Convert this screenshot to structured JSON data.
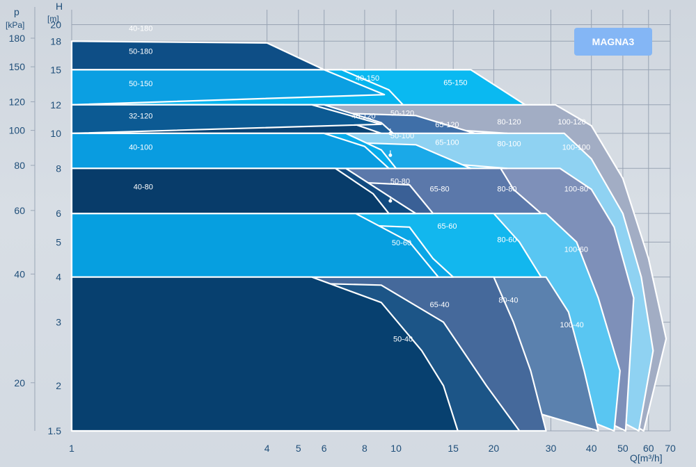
{
  "chart_data": {
    "type": "area",
    "badge": "MAGNA3",
    "xlabel": "Q[m³/h]",
    "ylabel_h": "H",
    "ylabel_h_unit": "[m]",
    "ylabel_p": "p",
    "ylabel_p_unit": "[kPa]",
    "x_scale": "log",
    "y_scale": "log",
    "xlim": [
      1,
      70
    ],
    "ylim": [
      1.5,
      22
    ],
    "x_ticks": [
      1,
      4,
      5,
      6,
      8,
      10,
      15,
      20,
      30,
      40,
      50,
      60,
      70
    ],
    "x_tick_labels": [
      "1",
      "4",
      "5",
      "6",
      "8",
      "10",
      "15",
      "20",
      "30",
      "40",
      "50",
      "60",
      "70"
    ],
    "h_ticks": [
      1.5,
      2,
      3,
      4,
      5,
      6,
      8,
      10,
      12,
      15,
      18,
      20
    ],
    "h_tick_labels": [
      "1.5",
      "2",
      "3",
      "4",
      "5",
      "6",
      "8",
      "10",
      "12",
      "15",
      "18",
      "20"
    ],
    "p_ticks": [
      20,
      40,
      60,
      80,
      100,
      120,
      150,
      180
    ],
    "p_tick_labels": [
      "20",
      "40",
      "60",
      "80",
      "100",
      "120",
      "150",
      "180"
    ],
    "grid": true,
    "series": [
      {
        "name": "100-120",
        "color": "#a2adc4",
        "points": [
          [
            1,
            12
          ],
          [
            31,
            12
          ],
          [
            40,
            10.5
          ],
          [
            50,
            7.5
          ],
          [
            60,
            4.5
          ],
          [
            68,
            2.7
          ],
          [
            58,
            1.5
          ]
        ]
      },
      {
        "name": "100-100",
        "color": "#8fd2f2",
        "points": [
          [
            1,
            10
          ],
          [
            33,
            10
          ],
          [
            40,
            8.5
          ],
          [
            50,
            6
          ],
          [
            57,
            4
          ],
          [
            62,
            2.5
          ],
          [
            56,
            1.5
          ]
        ]
      },
      {
        "name": "100-80",
        "color": "#7e90b9",
        "points": [
          [
            1,
            8
          ],
          [
            32,
            8
          ],
          [
            40,
            7
          ],
          [
            47,
            5.5
          ],
          [
            54,
            3.5
          ],
          [
            51,
            1.5
          ]
        ]
      },
      {
        "name": "100-60",
        "color": "#59c6f2",
        "points": [
          [
            1,
            6
          ],
          [
            29,
            6
          ],
          [
            36,
            5
          ],
          [
            42,
            3.5
          ],
          [
            49,
            2.2
          ],
          [
            47,
            1.5
          ]
        ]
      },
      {
        "name": "100-40",
        "color": "#5b81ae",
        "points": [
          [
            1,
            4
          ],
          [
            29,
            4
          ],
          [
            34,
            3.2
          ],
          [
            38,
            2.2
          ],
          [
            42,
            1.5
          ]
        ]
      },
      {
        "name": "80-120",
        "color": "#7d95c0",
        "points": [
          [
            1,
            12
          ],
          [
            22,
            10
          ],
          [
            1,
            10
          ]
        ]
      },
      {
        "name": "80-100",
        "color": "#5ec7f3",
        "points": [
          [
            1,
            10
          ],
          [
            22,
            8
          ],
          [
            1,
            8
          ]
        ]
      },
      {
        "name": "80-80",
        "color": "#5b78aa",
        "points": [
          [
            1,
            8
          ],
          [
            21,
            8
          ],
          [
            23,
            7
          ],
          [
            28,
            6
          ],
          [
            1,
            6
          ]
        ]
      },
      {
        "name": "80-60",
        "color": "#12b7ee",
        "points": [
          [
            1,
            6
          ],
          [
            20,
            6
          ],
          [
            24,
            5
          ],
          [
            28,
            4
          ],
          [
            1,
            4
          ]
        ]
      },
      {
        "name": "80-40",
        "color": "#45699b",
        "points": [
          [
            1,
            4
          ],
          [
            20,
            4
          ],
          [
            23,
            3
          ],
          [
            26,
            2.2
          ],
          [
            29,
            1.5
          ],
          [
            1,
            1.5
          ]
        ]
      },
      {
        "name": "65-150",
        "color": "#0ab9f1",
        "points": [
          [
            1,
            15
          ],
          [
            17,
            15
          ],
          [
            25,
            12
          ],
          [
            1,
            12
          ]
        ]
      },
      {
        "name": "65-120",
        "color": "#3f6fa8",
        "points": [
          [
            1,
            12
          ],
          [
            11.5,
            11.2
          ],
          [
            17.5,
            10
          ],
          [
            1,
            10
          ]
        ]
      },
      {
        "name": "65-100",
        "color": "#1aa9e8",
        "points": [
          [
            1,
            10
          ],
          [
            11.5,
            9.3
          ],
          [
            17,
            8
          ],
          [
            1,
            8
          ]
        ]
      },
      {
        "name": "65-80",
        "color": "#3a6096",
        "points": [
          [
            1,
            8
          ],
          [
            11,
            7.2
          ],
          [
            13,
            6
          ],
          [
            1,
            6
          ]
        ]
      },
      {
        "name": "65-60",
        "color": "#0aa6e6",
        "points": [
          [
            1,
            6
          ],
          [
            11,
            5.5
          ],
          [
            13,
            4.5
          ],
          [
            15,
            4
          ],
          [
            1,
            4
          ]
        ]
      },
      {
        "name": "65-40",
        "color": "#1c5587",
        "points": [
          [
            1,
            4
          ],
          [
            9,
            3.8
          ],
          [
            14,
            3
          ],
          [
            19,
            2
          ],
          [
            24,
            1.5
          ],
          [
            1,
            1.5
          ]
        ]
      },
      {
        "name": "50-180",
        "color": "#0e4e86",
        "points": [
          [
            1,
            17.5
          ],
          [
            6,
            15
          ],
          [
            1,
            15
          ]
        ]
      },
      {
        "name": "50-150",
        "color": "#06b4ee",
        "points": [
          [
            1,
            15
          ],
          [
            6.8,
            15
          ],
          [
            9.5,
            13.2
          ],
          [
            10.5,
            12
          ],
          [
            1,
            12
          ]
        ]
      },
      {
        "name": "50-120",
        "color": "#1d5e98",
        "points": [
          [
            1,
            12
          ],
          [
            6,
            12
          ],
          [
            9,
            10.7
          ],
          [
            9.8,
            10
          ],
          [
            1,
            10
          ]
        ]
      },
      {
        "name": "50-100",
        "color": "#08abea",
        "points": [
          [
            1,
            10
          ],
          [
            7,
            10
          ],
          [
            9,
            9
          ],
          [
            10,
            8
          ],
          [
            1,
            8
          ]
        ]
      },
      {
        "name": "50-80",
        "color": "#114a7f",
        "points": [
          [
            1,
            8
          ],
          [
            7,
            8
          ],
          [
            10,
            6.5
          ],
          [
            11.5,
            6
          ],
          [
            1,
            6
          ]
        ]
      },
      {
        "name": "50-60",
        "color": "#069fe0",
        "points": [
          [
            1,
            6
          ],
          [
            7.5,
            6
          ],
          [
            11,
            5
          ],
          [
            13.5,
            4
          ],
          [
            1,
            4
          ]
        ]
      },
      {
        "name": "50-40",
        "color": "#07406f",
        "points": [
          [
            1,
            4
          ],
          [
            5.5,
            4
          ],
          [
            9,
            3.4
          ],
          [
            12,
            2.5
          ],
          [
            14,
            2
          ],
          [
            15.5,
            1.5
          ],
          [
            1,
            1.5
          ]
        ]
      },
      {
        "name": "40-180",
        "color": "#0e4e86",
        "points": [
          [
            1,
            18
          ],
          [
            4,
            17.8
          ],
          [
            6,
            15
          ],
          [
            1,
            15
          ]
        ]
      },
      {
        "name": "40-150",
        "color": "#0b9fe2",
        "points": [
          [
            1,
            15
          ],
          [
            6,
            15
          ],
          [
            9.2,
            12.8
          ],
          [
            1,
            12
          ]
        ]
      },
      {
        "name": "32-120",
        "color": "#0a4273",
        "points": [
          [
            1,
            12
          ],
          [
            4.5,
            12
          ],
          [
            7,
            10.8
          ],
          [
            9,
            10
          ],
          [
            1,
            10
          ]
        ]
      },
      {
        "name": "40-120",
        "color": "#0c5a93",
        "points": [
          [
            1,
            12
          ],
          [
            5.5,
            12
          ],
          [
            9,
            10.6
          ],
          [
            1,
            10
          ]
        ]
      },
      {
        "name": "40-100",
        "color": "#099ce0",
        "points": [
          [
            1,
            10
          ],
          [
            6,
            10
          ],
          [
            8,
            9.2
          ],
          [
            9.5,
            8
          ],
          [
            1,
            8
          ]
        ]
      },
      {
        "name": "40-80",
        "color": "#083c6a",
        "points": [
          [
            1,
            8
          ],
          [
            6.5,
            8
          ],
          [
            8.5,
            6.8
          ],
          [
            9.5,
            6
          ],
          [
            1,
            6
          ]
        ]
      }
    ],
    "labels": [
      {
        "text": "40-180",
        "x": 1.5,
        "h": 19.2
      },
      {
        "text": "50-180",
        "x": 1.5,
        "h": 16.6
      },
      {
        "text": "50-150",
        "x": 1.5,
        "h": 13.5
      },
      {
        "text": "32-120",
        "x": 1.5,
        "h": 11.0
      },
      {
        "text": "40-100",
        "x": 1.5,
        "h": 9.0
      },
      {
        "text": "40-80",
        "x": 1.55,
        "h": 7.0
      },
      {
        "text": "40-150",
        "x": 7.5,
        "h": 14.0
      },
      {
        "text": "40-120",
        "x": 7.3,
        "h": 11.0
      },
      {
        "text": "50-120",
        "x": 9.6,
        "h": 11.2
      },
      {
        "text": "50-100",
        "x": 9.6,
        "h": 9.7
      },
      {
        "text": "50-80",
        "x": 9.6,
        "h": 7.25
      },
      {
        "text": "50-60",
        "x": 9.7,
        "h": 4.9
      },
      {
        "text": "50-40",
        "x": 9.8,
        "h": 2.65
      },
      {
        "text": "65-150",
        "x": 14.0,
        "h": 13.6
      },
      {
        "text": "65-120",
        "x": 13.2,
        "h": 10.4
      },
      {
        "text": "65-100",
        "x": 13.2,
        "h": 9.3
      },
      {
        "text": "65-80",
        "x": 12.7,
        "h": 6.9
      },
      {
        "text": "65-60",
        "x": 13.4,
        "h": 5.45
      },
      {
        "text": "65-40",
        "x": 12.7,
        "h": 3.3
      },
      {
        "text": "80-120",
        "x": 20.5,
        "h": 10.6
      },
      {
        "text": "80-100",
        "x": 20.5,
        "h": 9.2
      },
      {
        "text": "80-80",
        "x": 20.5,
        "h": 6.9
      },
      {
        "text": "80-60",
        "x": 20.5,
        "h": 5.0
      },
      {
        "text": "80-40",
        "x": 20.7,
        "h": 3.4
      },
      {
        "text": "100-120",
        "x": 31.5,
        "h": 10.6
      },
      {
        "text": "100-100",
        "x": 32.5,
        "h": 9.0
      },
      {
        "text": "100-80",
        "x": 33,
        "h": 6.9
      },
      {
        "text": "100-60",
        "x": 33,
        "h": 4.7
      },
      {
        "text": "100-40",
        "x": 32,
        "h": 2.9
      }
    ],
    "markers": [
      {
        "x": 9.6,
        "h": 10.0
      },
      {
        "x": 9.6,
        "h": 8.7
      },
      {
        "x": 9.6,
        "h": 6.5
      }
    ]
  }
}
